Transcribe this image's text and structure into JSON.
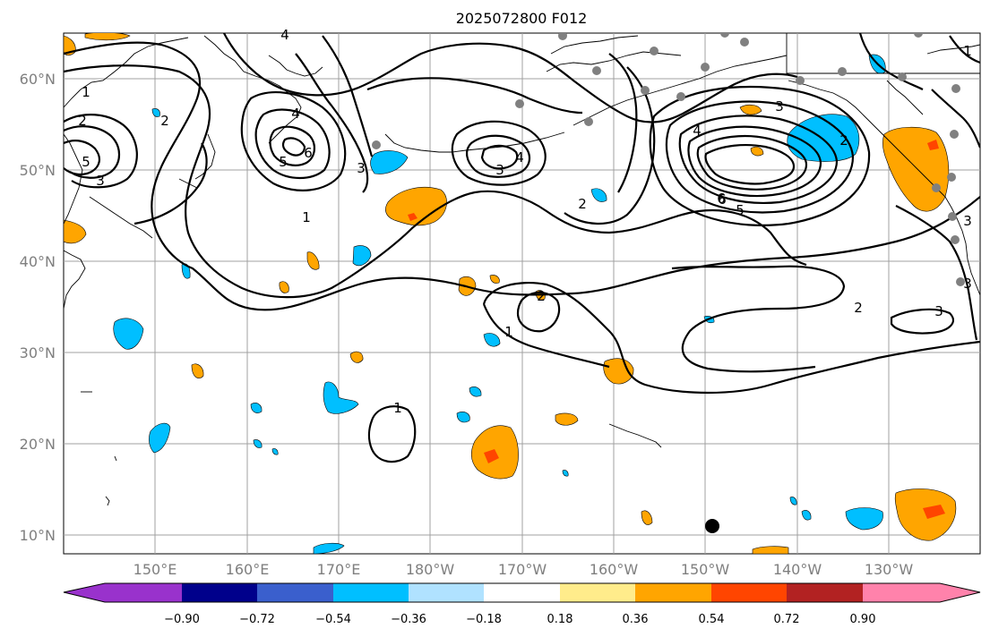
{
  "title": "2025072800 F012",
  "lat_labels": [
    "60°N",
    "50°N",
    "40°N",
    "30°N",
    "20°N",
    "10°N"
  ],
  "lon_labels": [
    "150°E",
    "160°E",
    "170°E",
    "180°W",
    "170°W",
    "160°W",
    "150°W",
    "140°W",
    "130°W"
  ],
  "colorbar": {
    "tick_labels": [
      "−0.90",
      "−0.72",
      "−0.54",
      "−0.36",
      "−0.18",
      "0.18",
      "0.36",
      "0.54",
      "0.72",
      "0.90"
    ],
    "colors": [
      "#9932cc",
      "#00008b",
      "#3a5fcd",
      "#00bfff",
      "#b0e2ff",
      "#ffffff",
      "#ffec8b",
      "#ffa500",
      "#ff4500",
      "#b22222",
      "#ff82ab"
    ]
  },
  "contour_labels": [
    "4",
    "1",
    "2",
    "5",
    "3",
    "6",
    "4",
    "5",
    "6",
    "3",
    "1",
    "4",
    "3",
    "2",
    "4",
    "3",
    "6",
    "5",
    "2",
    "1",
    "3",
    "2",
    "1",
    "2",
    "3",
    "2",
    "3",
    "1"
  ],
  "station_marker_color": "#808080",
  "highlight_marker_color": "#000000"
}
